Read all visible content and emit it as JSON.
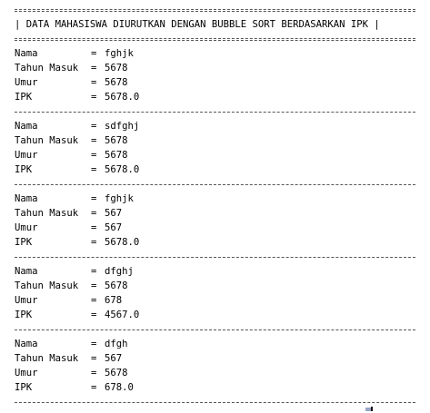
{
  "console": {
    "header": "| DATA MAHASISWA DIURUTKAN DENGAN BUBBLE SORT BERDASARKAN IPK |",
    "labels": {
      "nama": "Nama",
      "tahun_masuk": "Tahun Masuk",
      "umur": "Umur",
      "ipk": "IPK",
      "equals": "="
    },
    "records": [
      {
        "nama": "fghjk",
        "tahun_masuk": "5678",
        "umur": "5678",
        "ipk": "5678.0"
      },
      {
        "nama": "sdfghj",
        "tahun_masuk": "5678",
        "umur": "5678",
        "ipk": "5678.0"
      },
      {
        "nama": "fghjk",
        "tahun_masuk": "567",
        "umur": "567",
        "ipk": "5678.0"
      },
      {
        "nama": "dfghj",
        "tahun_masuk": "5678",
        "umur": "678",
        "ipk": "4567.0"
      },
      {
        "nama": "dfgh",
        "tahun_masuk": "567",
        "umur": "5678",
        "ipk": "678.0"
      }
    ]
  }
}
